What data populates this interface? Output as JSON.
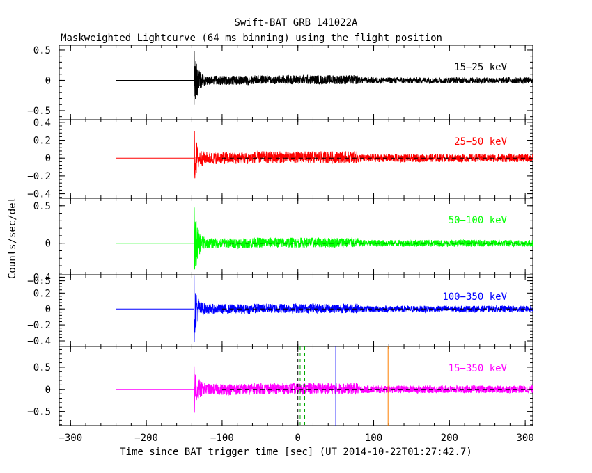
{
  "chart_data": {
    "type": "line",
    "title": "Swift-BAT GRB 141022A",
    "subtitle": "Maskweighted Lightcurve (64 ms binning) using the flight position",
    "xlabel": "Time since BAT trigger time [sec] (UT 2014-10-22T01:27:42.7)",
    "ylabel": "Counts/sec/det",
    "xlim": [
      -315,
      310
    ],
    "x_ticks": [
      -300,
      -200,
      -100,
      0,
      100,
      200,
      300
    ],
    "data_start": -240,
    "trigger_onset": -137,
    "panels": [
      {
        "name": "15-25 keV",
        "label": "15−25 keV",
        "color": "#000000",
        "ylim": [
          -0.65,
          0.58
        ],
        "y_ticks": [
          -0.5,
          0,
          0.5
        ],
        "y_tick_labels": [
          "−0.5",
          "0",
          "0.5"
        ],
        "noise_amplitude": 0.05,
        "spike_amplitude": 0.55,
        "zero_line": false
      },
      {
        "name": "25-50 keV",
        "label": "25−50 keV",
        "color": "#ff0000",
        "ylim": [
          -0.45,
          0.43
        ],
        "y_ticks": [
          -0.4,
          -0.2,
          0,
          0.2,
          0.4
        ],
        "y_tick_labels": [
          "−0.4",
          "−0.2",
          "0",
          "0.2",
          "0.4"
        ],
        "noise_amplitude": 0.045,
        "spike_amplitude": 0.28,
        "zero_line": true
      },
      {
        "name": "50-100 keV",
        "label": "50−100 keV",
        "color": "#00ff00",
        "ylim": [
          -0.42,
          0.6
        ],
        "y_ticks": [
          -0.5,
          0,
          0.5
        ],
        "y_tick_labels": [
          "−0.5",
          "0",
          "0.5"
        ],
        "noise_amplitude": 0.045,
        "spike_amplitude": 0.5,
        "zero_line": true
      },
      {
        "name": "100-350 keV",
        "label": "100−350 keV",
        "color": "#0000ff",
        "ylim": [
          -0.47,
          0.43
        ],
        "y_ticks": [
          -0.4,
          -0.2,
          0,
          0.2,
          0.4
        ],
        "y_tick_labels": [
          "−0.4",
          "−0.2",
          "0",
          "0.2",
          "0.4"
        ],
        "noise_amplitude": 0.04,
        "spike_amplitude": 0.38,
        "zero_line": true
      },
      {
        "name": "15-350 keV",
        "label": "15−350 keV",
        "color": "#ff00ff",
        "ylim": [
          -0.82,
          0.97
        ],
        "y_ticks": [
          -0.5,
          0,
          0.5
        ],
        "y_tick_labels": [
          "−0.5",
          "0",
          "0.5"
        ],
        "noise_amplitude": 0.085,
        "spike_amplitude": 0.55,
        "zero_line": true
      }
    ],
    "markers": [
      {
        "name": "t90-start",
        "x": 0,
        "color": "#000000",
        "style": "dashed"
      },
      {
        "name": "t90-bracket-left",
        "x": 3,
        "color": "#00aa00",
        "style": "dashed"
      },
      {
        "name": "t90-bracket-right",
        "x": 9,
        "color": "#00aa00",
        "style": "dashed"
      },
      {
        "name": "blue-marker",
        "x": 50,
        "color": "#0000ff",
        "style": "solid"
      },
      {
        "name": "orange-marker",
        "x": 119,
        "color": "#ff7f00",
        "style": "solid"
      }
    ]
  }
}
